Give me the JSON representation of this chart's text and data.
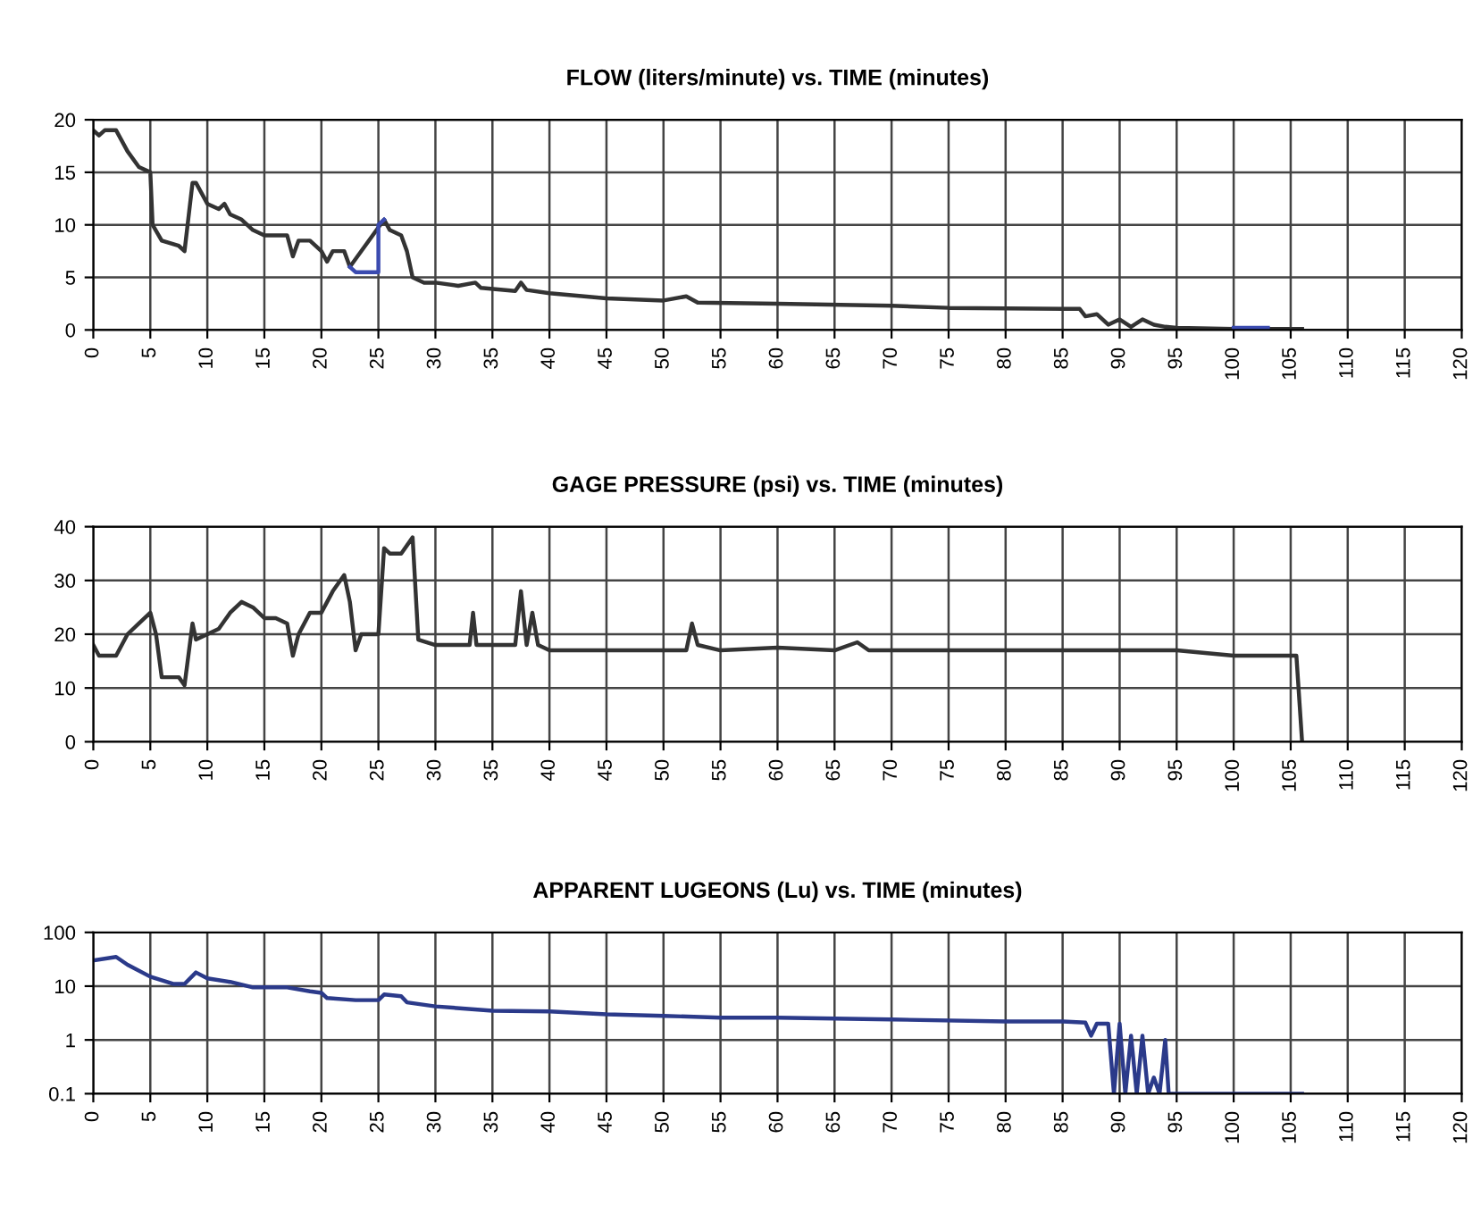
{
  "chart_data": [
    {
      "type": "line",
      "title": "FLOW (liters/minute) vs. TIME (minutes)",
      "xlim": [
        0,
        120
      ],
      "xticks": [
        0,
        5,
        10,
        15,
        20,
        25,
        30,
        35,
        40,
        45,
        50,
        55,
        60,
        65,
        70,
        75,
        80,
        85,
        90,
        95,
        100,
        105,
        110,
        115,
        120
      ],
      "ylim": [
        0,
        20
      ],
      "yticks": [
        0,
        5,
        10,
        15,
        20
      ],
      "grid": true,
      "legend": false,
      "marker": "none",
      "line_style": "solid",
      "series": [
        {
          "color": "#333333",
          "x": [
            0,
            0.5,
            1,
            2,
            3,
            4,
            5,
            5.2,
            6,
            7.5,
            8,
            8.7,
            9,
            10,
            11,
            11.5,
            12,
            13,
            14,
            15,
            17,
            17.5,
            18,
            19,
            20,
            20.5,
            21,
            22,
            22.5,
            25.5,
            26,
            27,
            27.5,
            28,
            29,
            30,
            32,
            33.5,
            34,
            37,
            37.5,
            38,
            40,
            45,
            50,
            52,
            53,
            60,
            70,
            75,
            85,
            86.5,
            87,
            88,
            89,
            90,
            91,
            92,
            93,
            94,
            95,
            100,
            106
          ],
          "values": [
            19,
            18.5,
            19,
            19,
            17,
            15.5,
            15,
            10,
            8.5,
            8,
            7.5,
            14,
            14,
            12,
            11.5,
            12,
            11,
            10.5,
            9.5,
            9,
            9,
            7,
            8.5,
            8.5,
            7.5,
            6.5,
            7.5,
            7.5,
            6,
            10.5,
            9.5,
            9,
            7.5,
            5,
            4.5,
            4.5,
            4.2,
            4.5,
            4,
            3.7,
            4.5,
            3.8,
            3.5,
            3,
            2.8,
            3.2,
            2.6,
            2.5,
            2.3,
            2.1,
            2,
            2,
            1.3,
            1.5,
            0.5,
            1,
            0.3,
            1,
            0.5,
            0.3,
            0.2,
            0.1,
            0.1
          ]
        },
        {
          "color": "#3b4bb0",
          "x": [
            22.5,
            23,
            25,
            25,
            25.5,
            null,
            100,
            103
          ],
          "values": [
            6,
            5.5,
            5.5,
            10,
            10.5,
            null,
            0.2,
            0.2
          ]
        }
      ]
    },
    {
      "type": "line",
      "title": "GAGE PRESSURE (psi) vs. TIME (minutes)",
      "xlim": [
        0,
        120
      ],
      "xticks": [
        0,
        5,
        10,
        15,
        20,
        25,
        30,
        35,
        40,
        45,
        50,
        55,
        60,
        65,
        70,
        75,
        80,
        85,
        90,
        95,
        100,
        105,
        110,
        115,
        120
      ],
      "ylim": [
        0,
        40
      ],
      "yticks": [
        0,
        10,
        20,
        30,
        40
      ],
      "grid": true,
      "legend": false,
      "marker": "none",
      "line_style": "solid",
      "series": [
        {
          "color": "#333333",
          "x": [
            0,
            0.5,
            2,
            3,
            4,
            5,
            5.5,
            6,
            7,
            7.5,
            8,
            8.7,
            9,
            10,
            11,
            12,
            13,
            14,
            15,
            16,
            17,
            17.5,
            18,
            19,
            20,
            21,
            22,
            22.5,
            23,
            23.5,
            25,
            25.5,
            26,
            27,
            28,
            28.5,
            30,
            33,
            33.3,
            33.6,
            37,
            37.5,
            38,
            38.5,
            39,
            40,
            45,
            50,
            52,
            52.5,
            53,
            55,
            60,
            65,
            67,
            68,
            75,
            85,
            90,
            95,
            100,
            105,
            105.5,
            106
          ],
          "values": [
            18,
            16,
            16,
            20,
            22,
            24,
            20,
            12,
            12,
            12,
            10.5,
            22,
            19,
            20,
            21,
            24,
            26,
            25,
            23,
            23,
            22,
            16,
            20,
            24,
            24,
            28,
            31,
            26,
            17,
            20,
            20,
            36,
            35,
            35,
            38,
            19,
            18,
            18,
            24,
            18,
            18,
            28,
            18,
            24,
            18,
            17,
            17,
            17,
            17,
            22,
            18,
            17,
            17.5,
            17,
            18.5,
            17,
            17,
            17,
            17,
            17,
            16,
            16,
            16,
            0
          ]
        }
      ]
    },
    {
      "type": "line",
      "title": "APPARENT LUGEONS (Lu) vs. TIME (minutes)",
      "log": "y",
      "xlim": [
        0,
        120
      ],
      "xticks": [
        0,
        5,
        10,
        15,
        20,
        25,
        30,
        35,
        40,
        45,
        50,
        55,
        60,
        65,
        70,
        75,
        80,
        85,
        90,
        95,
        100,
        105,
        110,
        115,
        120
      ],
      "ylim": [
        0.1,
        100
      ],
      "yticks": [
        0.1,
        1,
        10,
        100
      ],
      "grid": true,
      "legend": false,
      "marker": "none",
      "line_style": "solid",
      "series": [
        {
          "color": "#2b3a8a",
          "x": [
            0,
            2,
            3,
            5,
            7,
            8,
            9,
            10,
            12,
            14,
            17,
            19,
            20,
            20.5,
            23,
            25,
            25.5,
            27,
            27.5,
            30,
            35,
            40,
            45,
            50,
            55,
            60,
            70,
            80,
            85,
            87,
            87.5,
            88,
            89,
            89.5,
            90,
            90.5,
            91,
            91.5,
            92,
            92.5,
            93,
            93.5,
            94,
            94.3,
            95,
            106
          ],
          "values": [
            30,
            35,
            25,
            15,
            11,
            11,
            18,
            14,
            12,
            9.5,
            9.5,
            8,
            7.5,
            6,
            5.5,
            5.5,
            7,
            6.5,
            5,
            4.2,
            3.5,
            3.4,
            3,
            2.8,
            2.6,
            2.6,
            2.4,
            2.2,
            2.2,
            2.1,
            1.2,
            2,
            2,
            0.1,
            2,
            0.1,
            1.2,
            0.1,
            1.2,
            0.1,
            0.2,
            0.1,
            1,
            0.1,
            0.1,
            0.1
          ]
        }
      ]
    }
  ]
}
